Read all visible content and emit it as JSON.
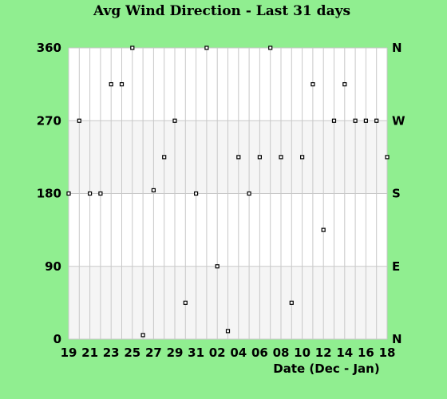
{
  "chart_data": {
    "type": "scatter",
    "title": "Avg Wind Direction - Last 31 days",
    "xlabel": "Date (Dec - Jan)",
    "ylabel": "",
    "ylim": [
      0,
      360
    ],
    "y_ticks": [
      "0",
      "90",
      "180",
      "270",
      "360"
    ],
    "y_ticks_right": [
      "N",
      "E",
      "S",
      "W",
      "N"
    ],
    "x_tick_labels": [
      "19",
      "21",
      "23",
      "25",
      "27",
      "29",
      "31",
      "02",
      "04",
      "06",
      "08",
      "10",
      "12",
      "14",
      "16",
      "18"
    ],
    "background_bands": [
      "#f5f5f5",
      "#ffffff",
      "#f5f5f5",
      "#ffffff"
    ],
    "grid": true,
    "marker": "square",
    "series": [
      {
        "x": [
          "Dec 19",
          "Dec 20",
          "Dec 21",
          "Dec 22",
          "Dec 23",
          "Dec 24",
          "Dec 25",
          "Dec 26",
          "Dec 27",
          "Dec 28",
          "Dec 29",
          "Dec 30",
          "Dec 31",
          "Jan 01",
          "Jan 02",
          "Jan 03",
          "Jan 04",
          "Jan 05",
          "Jan 06",
          "Jan 07",
          "Jan 08",
          "Jan 09",
          "Jan 10",
          "Jan 11",
          "Jan 12",
          "Jan 13",
          "Jan 14",
          "Jan 15",
          "Jan 16",
          "Jan 17",
          "Jan 18"
        ],
        "y": [
          180,
          270,
          180,
          180,
          315,
          315,
          360,
          5,
          184,
          225,
          270,
          45,
          180,
          360,
          90,
          10,
          225,
          180,
          225,
          360,
          225,
          45,
          225,
          315,
          135,
          270,
          315,
          270,
          270,
          270,
          225
        ]
      }
    ]
  }
}
